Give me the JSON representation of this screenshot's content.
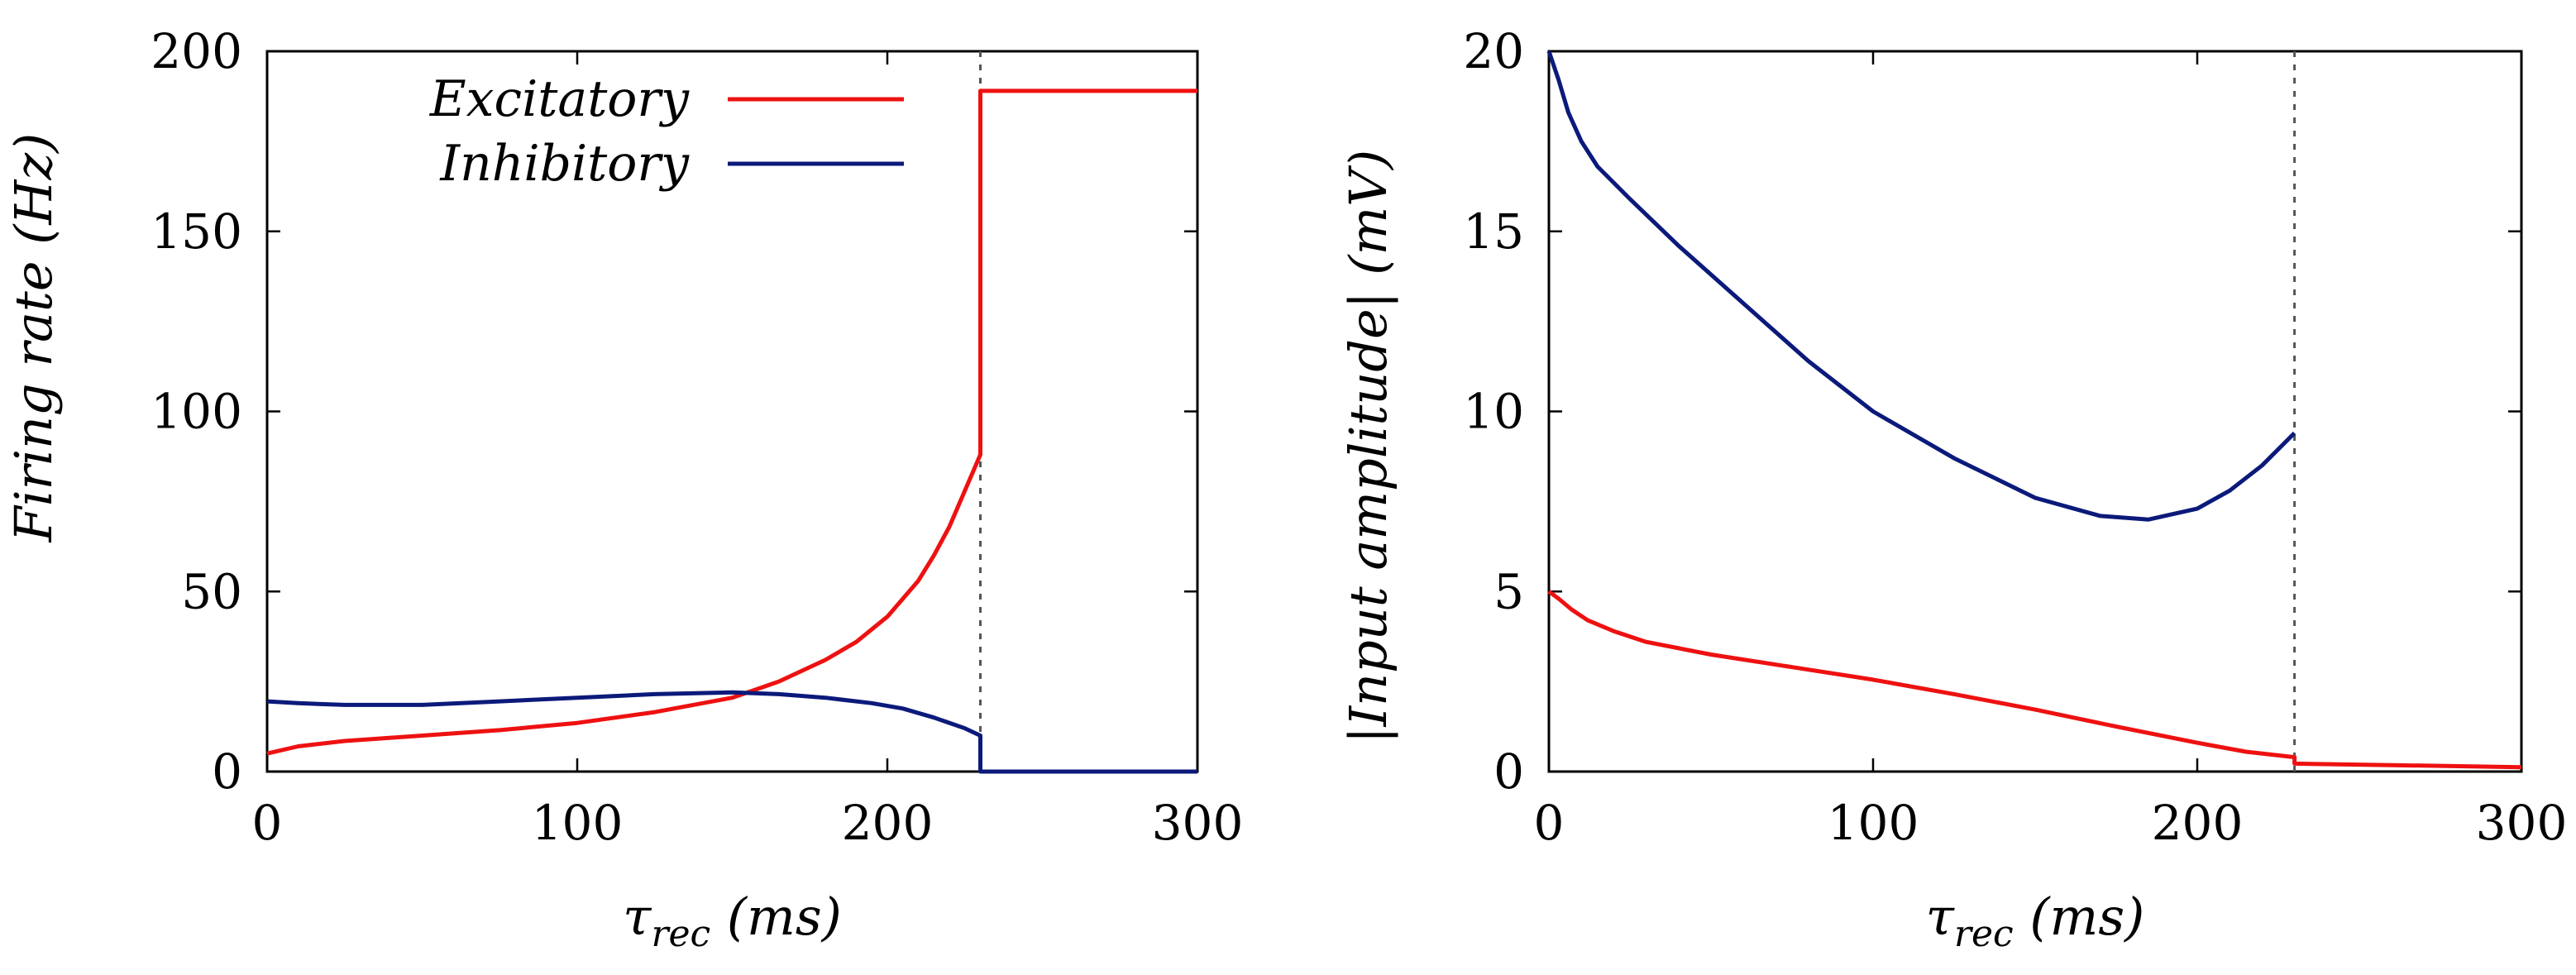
{
  "chart_data": [
    {
      "type": "line",
      "title": "",
      "xlabel": "τ_rec (ms)",
      "ylabel": "Firing rate (Hz)",
      "xlim": [
        0,
        300
      ],
      "ylim": [
        0,
        200
      ],
      "xticks": [
        0,
        100,
        200,
        300
      ],
      "yticks": [
        0,
        50,
        100,
        150,
        200
      ],
      "xtick_labels": [
        "0",
        "100",
        "200",
        "300"
      ],
      "ytick_labels": [
        "0",
        "50",
        "100",
        "150",
        "200"
      ],
      "vline_x": 230,
      "legend": {
        "position": "top-left",
        "entries": [
          "Excitatory",
          "Inhibitory"
        ]
      },
      "series": [
        {
          "name": "Excitatory",
          "color": "#ee1111",
          "x": [
            0,
            10,
            25,
            50,
            75,
            100,
            125,
            150,
            165,
            180,
            190,
            200,
            210,
            215,
            220,
            225,
            228,
            230,
            230,
            235,
            300
          ],
          "y": [
            5,
            7,
            8.5,
            10,
            11.5,
            13.5,
            16.5,
            20.5,
            25,
            31,
            36,
            43,
            53,
            60,
            68,
            78,
            84,
            88,
            189,
            189,
            189
          ]
        },
        {
          "name": "Inhibitory",
          "color": "#0b1a7a",
          "x": [
            0,
            10,
            25,
            50,
            75,
            100,
            125,
            150,
            165,
            180,
            195,
            205,
            215,
            225,
            230,
            230,
            300
          ],
          "y": [
            19.5,
            19,
            18.5,
            18.5,
            19.5,
            20.5,
            21.5,
            22,
            21.5,
            20.5,
            19,
            17.5,
            15,
            12,
            10,
            0,
            0
          ]
        }
      ]
    },
    {
      "type": "line",
      "title": "",
      "xlabel": "τ_rec (ms)",
      "ylabel": "|Input amplitude| (mV)",
      "xlim": [
        0,
        300
      ],
      "ylim": [
        0,
        20
      ],
      "xticks": [
        0,
        100,
        200,
        300
      ],
      "yticks": [
        0,
        5,
        10,
        15,
        20
      ],
      "xtick_labels": [
        "0",
        "100",
        "200",
        "300"
      ],
      "ytick_labels": [
        "0",
        "5",
        "10",
        "15",
        "20"
      ],
      "vline_x": 230,
      "series": [
        {
          "name": "Excitatory",
          "color": "#ee1111",
          "x": [
            0,
            3,
            7,
            12,
            20,
            30,
            50,
            75,
            100,
            125,
            150,
            175,
            200,
            215,
            230,
            230,
            260,
            300
          ],
          "y": [
            5,
            4.8,
            4.5,
            4.2,
            3.9,
            3.6,
            3.25,
            2.9,
            2.55,
            2.15,
            1.72,
            1.25,
            0.8,
            0.55,
            0.4,
            0.22,
            0.18,
            0.12
          ]
        },
        {
          "name": "Inhibitory",
          "color": "#0b1a7a",
          "x": [
            0,
            3,
            6,
            10,
            15,
            25,
            40,
            60,
            80,
            100,
            125,
            150,
            170,
            185,
            200,
            210,
            220,
            230
          ],
          "y": [
            20,
            19.2,
            18.3,
            17.5,
            16.8,
            15.9,
            14.6,
            13,
            11.4,
            10,
            8.7,
            7.6,
            7.1,
            7,
            7.3,
            7.8,
            8.5,
            9.4
          ]
        }
      ]
    }
  ]
}
